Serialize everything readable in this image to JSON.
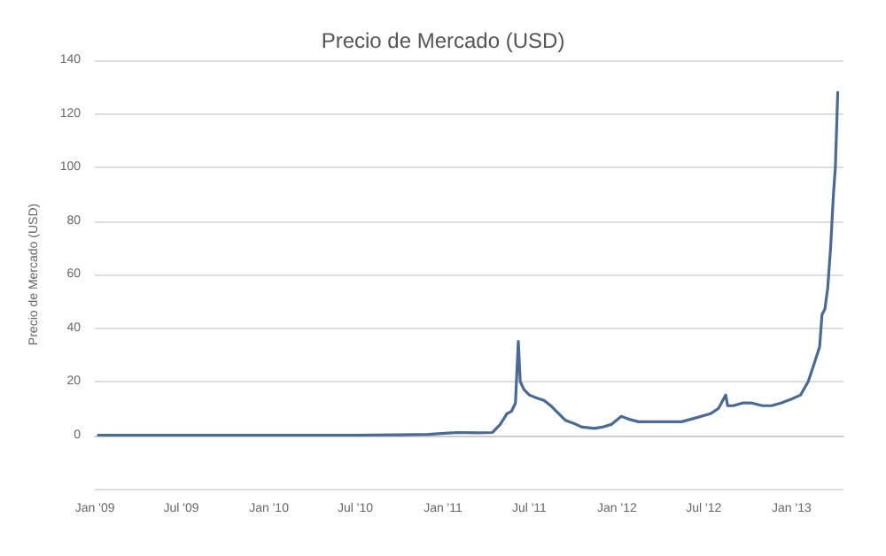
{
  "chart_data": {
    "type": "line",
    "title": "Precio de Mercado (USD)",
    "ylabel": "Precio de Mercado (USD)",
    "x": [
      "2009-01-08",
      "2009-07-01",
      "2010-01-01",
      "2010-07-01",
      "2010-10-01",
      "2010-12-01",
      "2011-02-01",
      "2011-03-15",
      "2011-04-15",
      "2011-05-01",
      "2011-05-15",
      "2011-05-25",
      "2011-06-02",
      "2011-06-08",
      "2011-06-12",
      "2011-06-20",
      "2011-07-01",
      "2011-07-15",
      "2011-08-01",
      "2011-08-15",
      "2011-09-01",
      "2011-09-15",
      "2011-10-01",
      "2011-10-20",
      "2011-11-15",
      "2011-12-01",
      "2011-12-20",
      "2012-01-10",
      "2012-01-25",
      "2012-02-15",
      "2012-03-15",
      "2012-04-15",
      "2012-05-15",
      "2012-06-15",
      "2012-07-15",
      "2012-08-01",
      "2012-08-16",
      "2012-08-20",
      "2012-09-01",
      "2012-09-20",
      "2012-10-10",
      "2012-11-01",
      "2012-11-20",
      "2012-12-10",
      "2013-01-01",
      "2013-01-20",
      "2013-02-05",
      "2013-02-20",
      "2013-03-01",
      "2013-03-06",
      "2013-03-12",
      "2013-03-18",
      "2013-03-24",
      "2013-03-30",
      "2013-04-03",
      "2013-04-08"
    ],
    "series": [
      {
        "color": "#4a6a94",
        "values": [
          0,
          0,
          0,
          0,
          0.1,
          0.3,
          1,
          0.9,
          1,
          4,
          8,
          9,
          12,
          35,
          20,
          17,
          15,
          14,
          13,
          11,
          8,
          5.5,
          4.5,
          3,
          2.5,
          3,
          4,
          7,
          6,
          5,
          5,
          5,
          5,
          6.5,
          8,
          10,
          15,
          11,
          11,
          12,
          12,
          11,
          11,
          12,
          13.5,
          15,
          20,
          28,
          33,
          45,
          47,
          55,
          70,
          90,
          100,
          128
        ]
      }
    ],
    "xlim": [
      "2009-01-01",
      "2013-04-20"
    ],
    "xticks": [
      {
        "value": "2009-01-01",
        "label": "Jan '09"
      },
      {
        "value": "2009-07-01",
        "label": "Jul '09"
      },
      {
        "value": "2010-01-01",
        "label": "Jan '10"
      },
      {
        "value": "2010-07-01",
        "label": "Jul '10"
      },
      {
        "value": "2011-01-01",
        "label": "Jan '11"
      },
      {
        "value": "2011-07-01",
        "label": "Jul '11"
      },
      {
        "value": "2012-01-01",
        "label": "Jan '12"
      },
      {
        "value": "2012-07-01",
        "label": "Jul '12"
      },
      {
        "value": "2013-01-01",
        "label": "Jan '13"
      }
    ],
    "ylim": [
      -20,
      140
    ],
    "yticks": [
      {
        "value": -20,
        "label": null
      },
      0,
      20,
      40,
      60,
      80,
      100,
      120,
      140
    ],
    "grid": "y",
    "marker": "none",
    "line_style": "solid"
  }
}
